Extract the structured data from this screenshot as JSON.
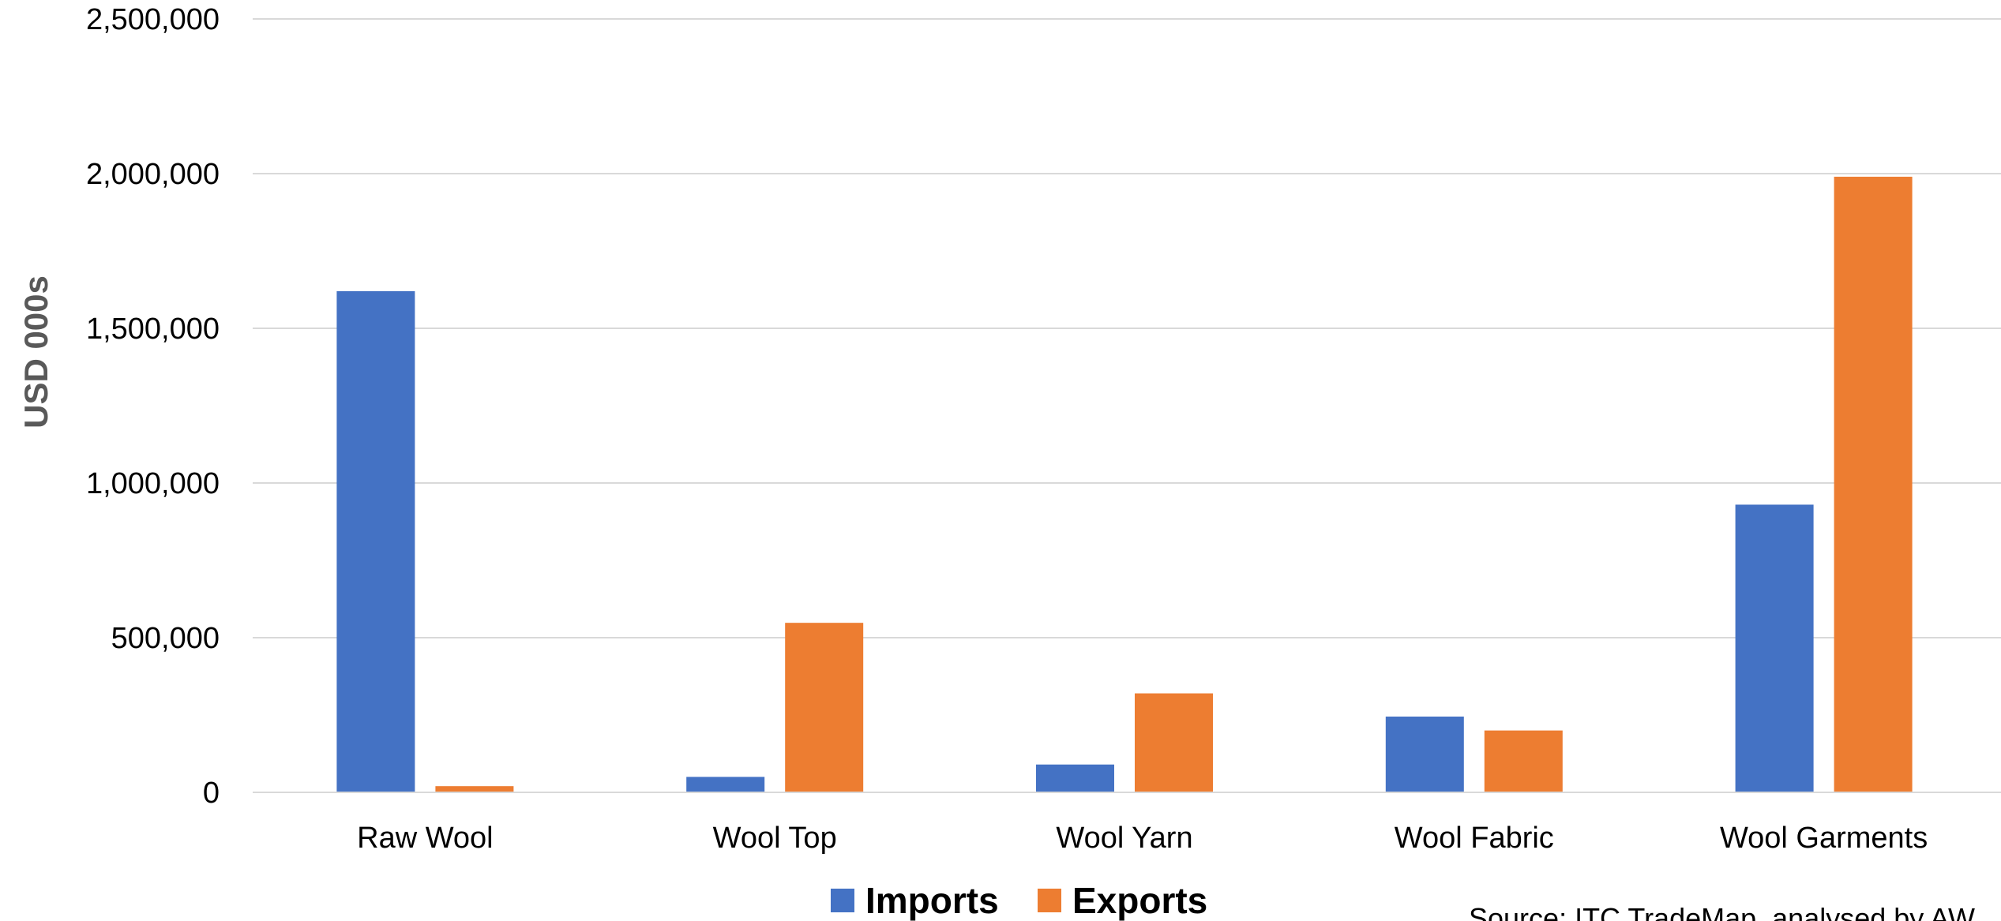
{
  "chart_data": {
    "type": "bar",
    "title": "",
    "xlabel": "",
    "ylabel": "USD 000s",
    "ylim": [
      0,
      2500000
    ],
    "yticks": [
      0,
      500000,
      1000000,
      1500000,
      2000000,
      2500000
    ],
    "ytick_labels": [
      "0",
      "500,000",
      "1,000,000",
      "1,500,000",
      "2,000,000",
      "2,500,000"
    ],
    "grid": "horizontal",
    "legend_position": "bottom",
    "categories": [
      "Raw Wool",
      "Wool Top",
      "Wool Yarn",
      "Wool Fabric",
      "Wool Garments"
    ],
    "series": [
      {
        "name": "Imports",
        "color": "#4472C4",
        "values": [
          1620000,
          50000,
          90000,
          245000,
          930000
        ]
      },
      {
        "name": "Exports",
        "color": "#ED7D31",
        "values": [
          20000,
          548000,
          320000,
          200000,
          1990000
        ]
      }
    ]
  },
  "source": "Source: ITC TradeMap, analysed by AW"
}
